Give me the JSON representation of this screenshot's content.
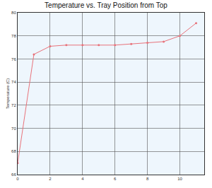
{
  "chart_data": {
    "type": "line",
    "title": "Temperature vs. Tray Position from Top",
    "y_label": "Temperature (C)",
    "x": [
      0,
      1,
      2,
      3,
      4,
      5,
      6,
      7,
      8,
      9,
      10,
      11
    ],
    "values": [
      67.0,
      76.4,
      77.1,
      77.2,
      77.2,
      77.2,
      77.2,
      77.3,
      77.4,
      77.5,
      78.0,
      79.1
    ],
    "color": "#e8727a",
    "marker": "circle",
    "xlim": [
      0,
      11.5
    ],
    "xticks": [
      0,
      2,
      4,
      6,
      8,
      10
    ],
    "ylim": [
      66,
      80
    ],
    "yticks": [
      66,
      68,
      70,
      72,
      74,
      76,
      78,
      80
    ],
    "grid": true
  }
}
